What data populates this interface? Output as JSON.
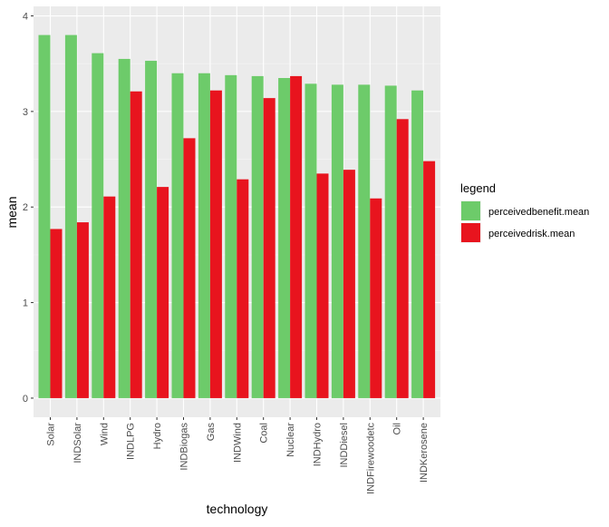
{
  "chart_data": {
    "type": "bar",
    "xlabel": "technology",
    "ylabel": "mean",
    "ylim": [
      -0.2,
      4.1
    ],
    "yticks": [
      0,
      1,
      2,
      3,
      4
    ],
    "grid": true,
    "legend_position": "right",
    "legend_title": "legend",
    "categories": [
      "Solar",
      "INDSolar",
      "Wind",
      "INDLPG",
      "Hydro",
      "INDBiogas",
      "Gas",
      "INDWind",
      "Coal",
      "Nuclear",
      "INDHydro",
      "INDDiesel",
      "INDFirewoodetc",
      "Oil",
      "INDKerosene"
    ],
    "series": [
      {
        "name": "perceivedbenefit.mean",
        "color": "#6DCB6A",
        "values": [
          3.8,
          3.8,
          3.61,
          3.55,
          3.53,
          3.4,
          3.4,
          3.38,
          3.37,
          3.35,
          3.29,
          3.28,
          3.28,
          3.27,
          3.22
        ]
      },
      {
        "name": "perceivedrisk.mean",
        "color": "#E8141E",
        "values": [
          1.77,
          1.84,
          2.11,
          3.21,
          2.21,
          2.72,
          3.22,
          2.29,
          3.14,
          3.37,
          2.35,
          2.39,
          2.09,
          2.92,
          2.48
        ]
      }
    ]
  }
}
